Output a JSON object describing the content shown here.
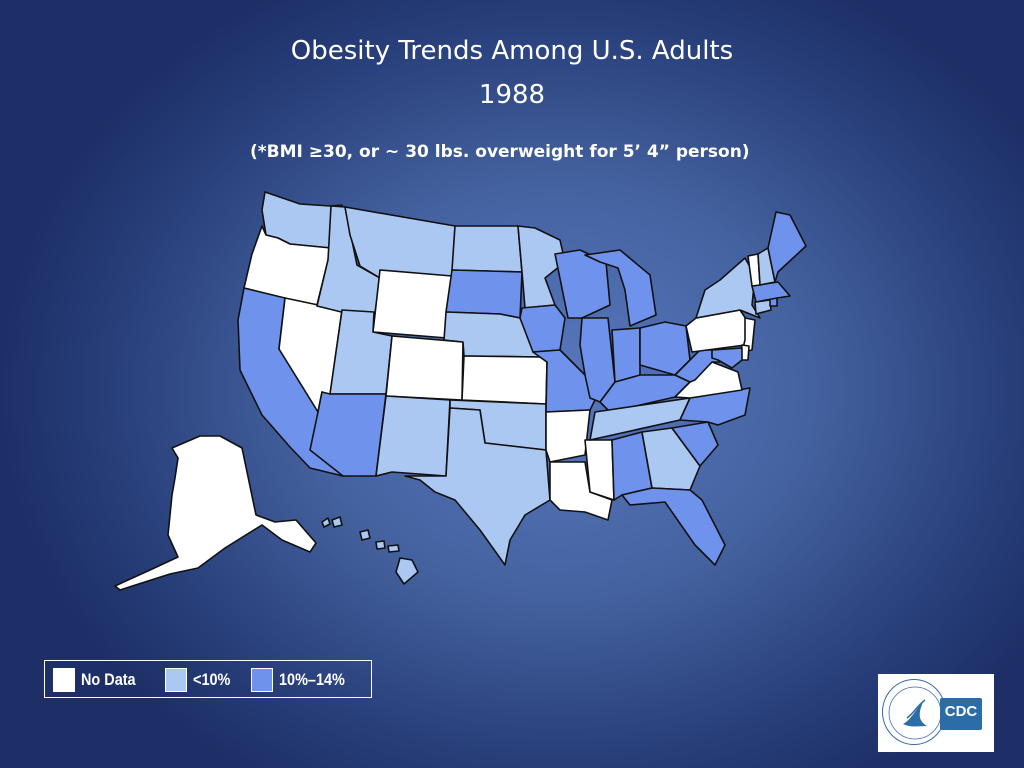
{
  "slide": {
    "title_line1": "Obesity Trends Among U.S. Adults",
    "title_line2": "1988",
    "subtitle": "(*BMI ≥30, or ~ 30 lbs. overweight for 5’ 4” person)"
  },
  "colors": {
    "no_data": "#ffffff",
    "lt10": "#abc8f3",
    "10to14": "#6f93ec",
    "border": "#111111"
  },
  "legend": {
    "items": [
      {
        "label": "No Data",
        "category": "no_data",
        "color": "#ffffff"
      },
      {
        "label": "<10%",
        "category": "lt10",
        "color": "#abc8f3"
      },
      {
        "label": "10%–14%",
        "category": "10to14",
        "color": "#6f93ec"
      }
    ]
  },
  "map_data": {
    "year": "1988",
    "states": {
      "WA": "lt10",
      "OR": "no_data",
      "CA": "10to14",
      "NV": "no_data",
      "ID": "lt10",
      "MT": "lt10",
      "WY": "no_data",
      "UT": "lt10",
      "AZ": "10to14",
      "CO": "no_data",
      "NM": "lt10",
      "ND": "lt10",
      "SD": "10to14",
      "NE": "lt10",
      "KS": "no_data",
      "OK": "lt10",
      "TX": "lt10",
      "MN": "lt10",
      "IA": "10to14",
      "MO": "10to14",
      "AR": "no_data",
      "LA": "no_data",
      "WI": "10to14",
      "IL": "10to14",
      "MS": "no_data",
      "MI": "10to14",
      "IN": "10to14",
      "KY": "10to14",
      "TN": "lt10",
      "AL": "10to14",
      "OH": "10to14",
      "GA": "lt10",
      "FL": "10to14",
      "SC": "10to14",
      "NC": "10to14",
      "VA": "no_data",
      "WV": "10to14",
      "PA": "no_data",
      "NY": "lt10",
      "NJ": "no_data",
      "DE": "no_data",
      "MD": "10to14",
      "CT": "lt10",
      "RI": "10to14",
      "MA": "10to14",
      "VT": "no_data",
      "NH": "lt10",
      "ME": "10to14",
      "AK": "no_data",
      "HI": "lt10"
    }
  },
  "logo": {
    "text": "CDC",
    "alt": "CDC and HHS logo"
  }
}
